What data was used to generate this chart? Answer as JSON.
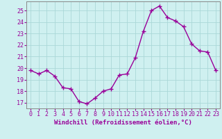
{
  "x": [
    0,
    1,
    2,
    3,
    4,
    5,
    6,
    7,
    8,
    9,
    10,
    11,
    12,
    13,
    14,
    15,
    16,
    17,
    18,
    19,
    20,
    21,
    22,
    23
  ],
  "y": [
    19.8,
    19.5,
    19.8,
    19.3,
    18.3,
    18.2,
    17.1,
    16.9,
    17.4,
    18.0,
    18.2,
    19.4,
    19.5,
    20.9,
    23.2,
    25.0,
    25.4,
    24.4,
    24.1,
    23.6,
    22.1,
    21.5,
    21.4,
    19.8
  ],
  "line_color": "#990099",
  "marker": "+",
  "marker_size": 4,
  "bg_color": "#cff0f0",
  "grid_color": "#aad8d8",
  "xlabel": "Windchill (Refroidissement éolien,°C)",
  "xlabel_fontsize": 6.5,
  "tick_fontsize": 6,
  "ylim": [
    16.5,
    25.8
  ],
  "yticks": [
    17,
    18,
    19,
    20,
    21,
    22,
    23,
    24,
    25
  ],
  "xticks": [
    0,
    1,
    2,
    3,
    4,
    5,
    6,
    7,
    8,
    9,
    10,
    11,
    12,
    13,
    14,
    15,
    16,
    17,
    18,
    19,
    20,
    21,
    22,
    23
  ],
  "linewidth": 1.0,
  "spine_color": "#888888"
}
